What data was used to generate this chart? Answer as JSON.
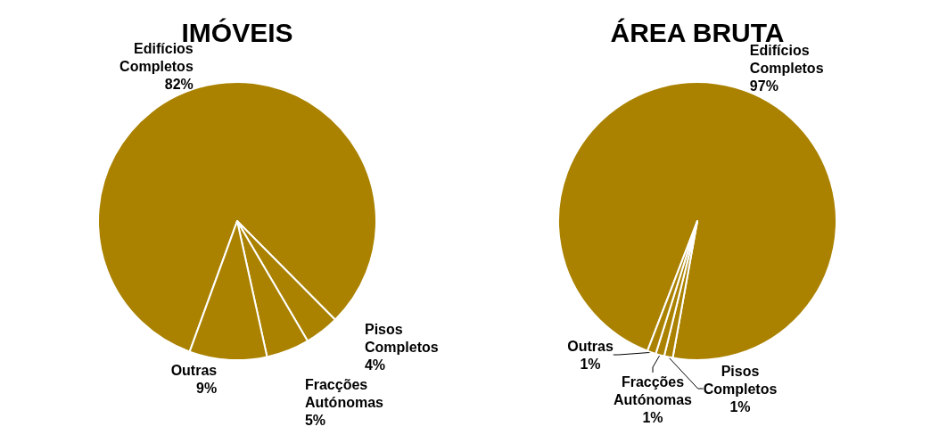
{
  "chart_data": [
    {
      "type": "pie",
      "title": "IMÓVEIS",
      "categories": [
        "Edifícios Completos",
        "Pisos Completos",
        "Fracções Autónomas",
        "Outras"
      ],
      "values": [
        82,
        4,
        5,
        9
      ],
      "value_labels": [
        "82%",
        "4%",
        "5%",
        "9%"
      ],
      "colors": [
        "#aa8200",
        "#aa8200",
        "#aa8200",
        "#aa8200"
      ],
      "data_labels": true,
      "legend": false
    },
    {
      "type": "pie",
      "title": "ÁREA BRUTA",
      "categories": [
        "Edifícios Completos",
        "Pisos Completos",
        "Fracções Autónomas",
        "Outras"
      ],
      "values": [
        97,
        1,
        1,
        1
      ],
      "value_labels": [
        "97%",
        "1%",
        "1%",
        "1%"
      ],
      "colors": [
        "#aa8200",
        "#aa8200",
        "#aa8200",
        "#aa8200"
      ],
      "data_labels": true,
      "legend": false
    }
  ]
}
